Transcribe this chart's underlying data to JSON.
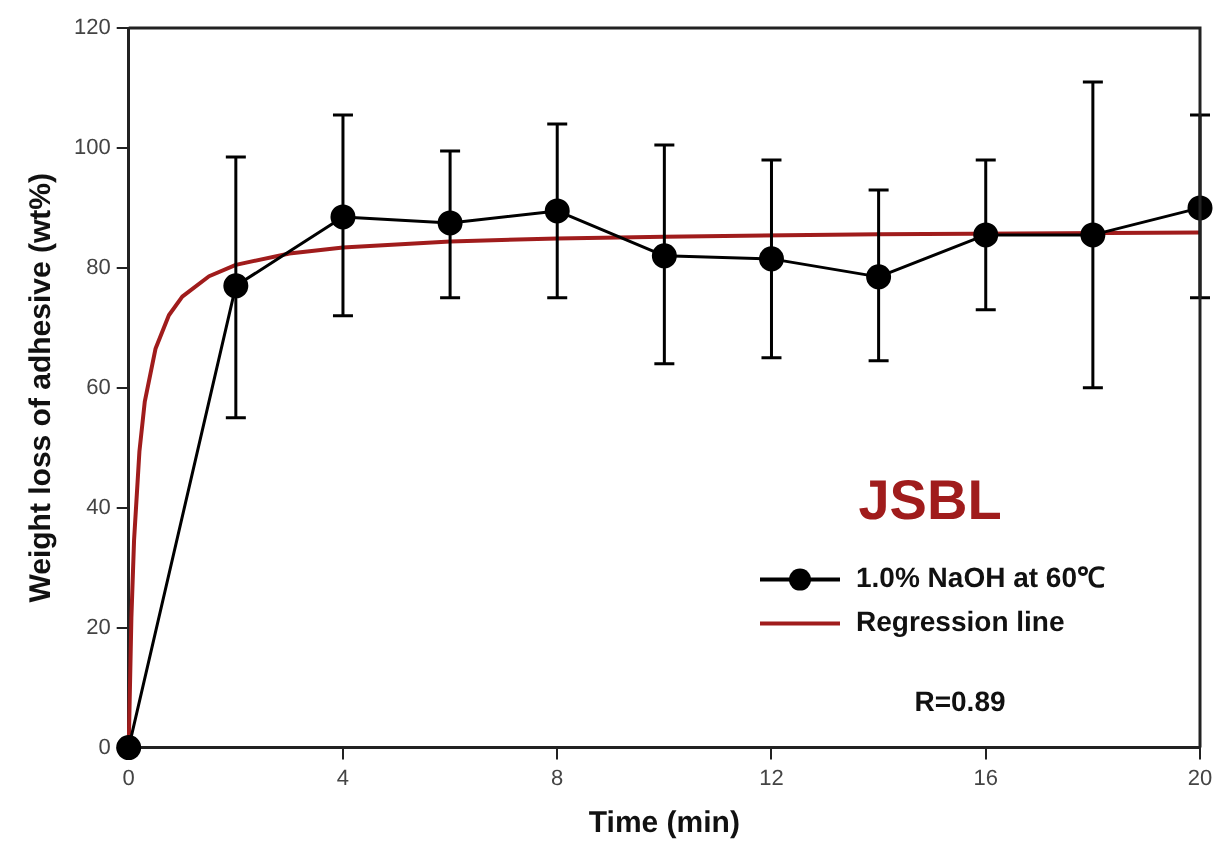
{
  "chart_data": {
    "type": "line",
    "xlabel": "Time (min)",
    "ylabel": "Weight loss of adhesive (wt%)",
    "xlim": [
      0,
      20
    ],
    "xticks": [
      0,
      4,
      8,
      12,
      16,
      20
    ],
    "ylim": [
      0,
      120
    ],
    "yticks": [
      0,
      20,
      40,
      60,
      80,
      100,
      120
    ],
    "grid": false,
    "legend": "bottom right",
    "annotations": [
      "JSBL",
      "R=0.89"
    ],
    "series": [
      {
        "name": "1.0% NaOH at 60℃",
        "color": "#000000",
        "marker": "circle",
        "x": [
          0,
          2,
          4,
          6,
          8,
          10,
          12,
          14,
          16,
          18,
          20
        ],
        "values": [
          0,
          77,
          88.5,
          87.5,
          89.5,
          82,
          81.5,
          78.5,
          85.5,
          85.5,
          90
        ],
        "errors": [
          null,
          [
            55,
            98.5
          ],
          [
            72,
            105.5
          ],
          [
            75,
            99.5
          ],
          [
            75,
            104
          ],
          [
            64,
            100.5
          ],
          [
            65,
            98
          ],
          [
            64.5,
            93
          ],
          [
            73,
            98
          ],
          [
            60,
            111
          ],
          [
            75,
            105.5
          ]
        ]
      },
      {
        "name": "Regression line",
        "color": "#a01c1c",
        "marker": "none",
        "x": [
          0,
          0.05,
          0.1,
          0.2,
          0.3,
          0.5,
          0.75,
          1,
          1.5,
          2,
          3,
          4,
          6,
          8,
          10,
          14,
          20
        ],
        "values": [
          0,
          21.6,
          34.6,
          49.4,
          57.7,
          66.5,
          72.1,
          75.2,
          78.6,
          80.5,
          82.4,
          83.4,
          84.4,
          84.9,
          85.2,
          85.6,
          85.9
        ]
      }
    ]
  }
}
